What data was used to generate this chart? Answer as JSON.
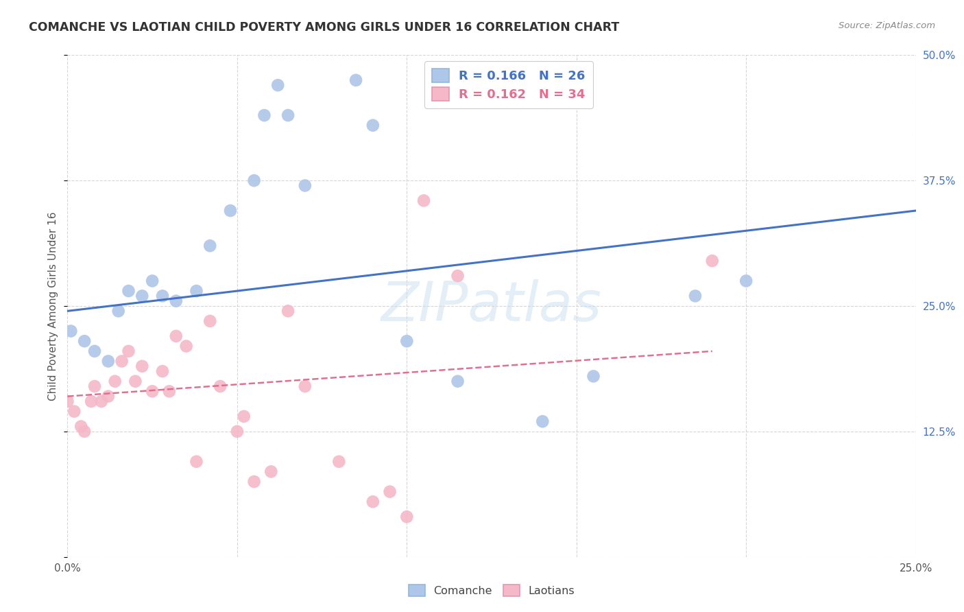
{
  "title": "COMANCHE VS LAOTIAN CHILD POVERTY AMONG GIRLS UNDER 16 CORRELATION CHART",
  "source": "Source: ZipAtlas.com",
  "ylabel": "Child Poverty Among Girls Under 16",
  "watermark": "ZIPatlas",
  "xlim": [
    0.0,
    0.25
  ],
  "ylim": [
    0.0,
    0.5
  ],
  "xticks": [
    0.0,
    0.05,
    0.1,
    0.15,
    0.2,
    0.25
  ],
  "yticks": [
    0.0,
    0.125,
    0.25,
    0.375,
    0.5
  ],
  "xticklabels": [
    "0.0%",
    "",
    "",
    "",
    "",
    "25.0%"
  ],
  "yticklabels": [
    "",
    "12.5%",
    "25.0%",
    "37.5%",
    "50.0%"
  ],
  "comanche_R": 0.166,
  "comanche_N": 26,
  "laotian_R": 0.162,
  "laotian_N": 34,
  "comanche_color": "#aec6e8",
  "laotian_color": "#f5b8c8",
  "comanche_line_color": "#4472c4",
  "laotian_line_color": "#e07090",
  "comanche_x": [
    0.001,
    0.005,
    0.008,
    0.012,
    0.015,
    0.018,
    0.022,
    0.025,
    0.028,
    0.032,
    0.038,
    0.042,
    0.048,
    0.055,
    0.058,
    0.062,
    0.065,
    0.07,
    0.085,
    0.09,
    0.1,
    0.115,
    0.14,
    0.155,
    0.185,
    0.2
  ],
  "comanche_y": [
    0.225,
    0.215,
    0.205,
    0.195,
    0.245,
    0.265,
    0.26,
    0.275,
    0.26,
    0.255,
    0.265,
    0.31,
    0.345,
    0.375,
    0.44,
    0.47,
    0.44,
    0.37,
    0.475,
    0.43,
    0.215,
    0.175,
    0.135,
    0.18,
    0.26,
    0.275
  ],
  "laotian_x": [
    0.0,
    0.002,
    0.004,
    0.005,
    0.007,
    0.008,
    0.01,
    0.012,
    0.014,
    0.016,
    0.018,
    0.02,
    0.022,
    0.025,
    0.028,
    0.03,
    0.032,
    0.035,
    0.038,
    0.042,
    0.045,
    0.05,
    0.052,
    0.055,
    0.06,
    0.065,
    0.07,
    0.08,
    0.09,
    0.095,
    0.1,
    0.105,
    0.115,
    0.19
  ],
  "laotian_y": [
    0.155,
    0.145,
    0.13,
    0.125,
    0.155,
    0.17,
    0.155,
    0.16,
    0.175,
    0.195,
    0.205,
    0.175,
    0.19,
    0.165,
    0.185,
    0.165,
    0.22,
    0.21,
    0.095,
    0.235,
    0.17,
    0.125,
    0.14,
    0.075,
    0.085,
    0.245,
    0.17,
    0.095,
    0.055,
    0.065,
    0.04,
    0.355,
    0.28,
    0.295
  ],
  "comanche_line_x0": 0.0,
  "comanche_line_y0": 0.245,
  "comanche_line_x1": 0.25,
  "comanche_line_y1": 0.345,
  "laotian_line_x0": 0.0,
  "laotian_line_y0": 0.16,
  "laotian_line_x1": 0.19,
  "laotian_line_y1": 0.205,
  "background_color": "#ffffff",
  "grid_color": "#cccccc",
  "title_color": "#333333",
  "axis_label_color": "#555555",
  "tick_label_color_right": "#4472c4",
  "legend_text_color_blue": "#4472c4",
  "legend_text_color_pink": "#e07090"
}
